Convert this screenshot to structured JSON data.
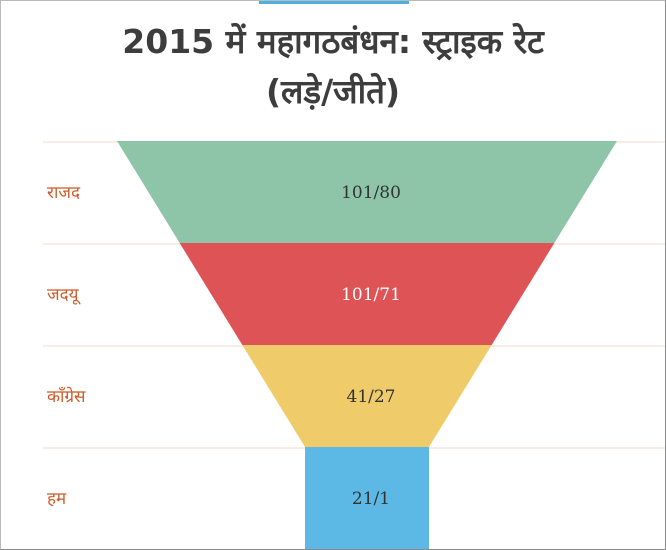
{
  "chart_data": {
    "type": "funnel",
    "title": "2015 में महागठबंधन: स्ट्राइक रेट (लड़े/जीते)",
    "title_lines": [
      "2015 में महागठबंधन: स्ट्राइक रेट",
      "(लड़े/जीते)"
    ],
    "categories": [
      "राजद",
      "जदयू",
      "कॉंग्रेस",
      "हम"
    ],
    "series": [
      {
        "values": [
          101,
          101,
          41,
          21
        ]
      },
      {
        "values": [
          80,
          71,
          27,
          1
        ]
      }
    ],
    "labels": [
      "101/80",
      "101/71",
      "41/27",
      "21/1"
    ],
    "colors": [
      "#8ec5a8",
      "#dd5356",
      "#efcb6a",
      "#5cb8e4"
    ],
    "value_label_colors": [
      "#333333",
      "#ffffff",
      "#333333",
      "#333333"
    ],
    "category_label_color": "#cc5b2a",
    "grid": true,
    "legend": "none"
  }
}
